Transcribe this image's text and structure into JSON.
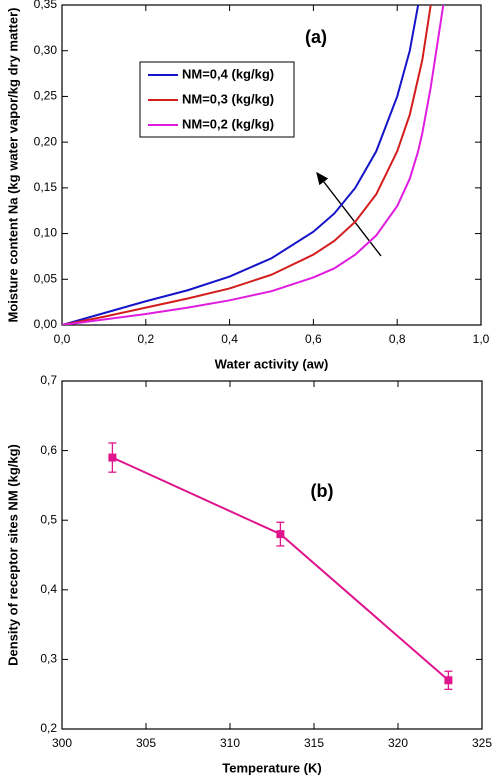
{
  "chart_data": [
    {
      "type": "line",
      "annotation": "(a)",
      "x_label": "Water activity (aw)",
      "y_label": "Moisture content Na (kg water vapor/kg dry matter)",
      "x": [
        0,
        0.1,
        0.2,
        0.3,
        0.4,
        0.5,
        0.6,
        0.65,
        0.7,
        0.75,
        0.8,
        0.83,
        0.85,
        0.86,
        0.88,
        0.91
      ],
      "series": [
        {
          "name": "NM=0,4 (kg/kg)",
          "color": "#1414c8",
          "values": [
            0,
            0.013,
            0.026,
            0.038,
            0.053,
            0.073,
            0.102,
            0.122,
            0.15,
            0.19,
            0.25,
            0.3,
            0.35,
            null,
            null,
            null
          ]
        },
        {
          "name": "NM=0,3 (kg/kg)",
          "color": "#d41c1c",
          "values": [
            0,
            0.009,
            0.019,
            0.029,
            0.04,
            0.055,
            0.077,
            0.092,
            0.113,
            0.143,
            0.19,
            0.23,
            0.27,
            0.29,
            0.35,
            null
          ]
        },
        {
          "name": "NM=0,2 (kg/kg)",
          "color": "#e01ce0",
          "values": [
            0,
            0.006,
            0.012,
            0.019,
            0.027,
            0.037,
            0.052,
            0.062,
            0.077,
            0.098,
            0.13,
            0.16,
            0.19,
            0.21,
            0.26,
            0.35
          ]
        }
      ],
      "xlim": [
        0,
        1.0
      ],
      "xticks": [
        {
          "value": 0,
          "label": "0,0"
        },
        {
          "value": 0.2,
          "label": "0,2"
        },
        {
          "value": 0.4,
          "label": "0,4"
        },
        {
          "value": 0.6,
          "label": "0,6"
        },
        {
          "value": 0.8,
          "label": "0,8"
        },
        {
          "value": 1.0,
          "label": "1,0"
        }
      ],
      "ylim": [
        0,
        0.35
      ],
      "yticks": [
        {
          "value": 0,
          "label": "0,00"
        },
        {
          "value": 0.05,
          "label": "0,05"
        },
        {
          "value": 0.1,
          "label": "0,10"
        },
        {
          "value": 0.15,
          "label": "0,15"
        },
        {
          "value": 0.2,
          "label": "0,20"
        },
        {
          "value": 0.25,
          "label": "0,25"
        },
        {
          "value": 0.3,
          "label": "0,30"
        },
        {
          "value": 0.35,
          "label": "0,35"
        }
      ],
      "legend": "upper left"
    },
    {
      "type": "errorline",
      "annotation": "(b)",
      "x_label": "Temperature (K)",
      "y_label": "Density of receptor sites NM (kg/kg)",
      "x": [
        303,
        313,
        323
      ],
      "series": [
        {
          "color": "#e0148c",
          "values": [
            0.59,
            0.48,
            0.27
          ],
          "errors": [
            0.021,
            0.017,
            0.013
          ]
        }
      ],
      "xlim": [
        300,
        325
      ],
      "xticks": [
        300,
        305,
        310,
        315,
        320,
        325
      ],
      "ylim": [
        0.2,
        0.7
      ],
      "yticks": [
        {
          "value": 0.2,
          "label": "0,2"
        },
        {
          "value": 0.3,
          "label": "0,3"
        },
        {
          "value": 0.4,
          "label": "0,4"
        },
        {
          "value": 0.5,
          "label": "0,5"
        },
        {
          "value": 0.6,
          "label": "0,6"
        },
        {
          "value": 0.7,
          "label": "0,7"
        }
      ]
    }
  ]
}
